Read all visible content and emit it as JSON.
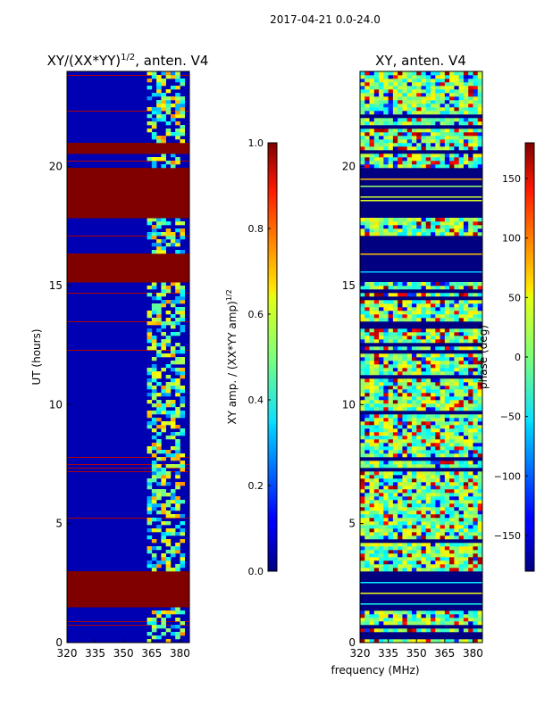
{
  "figure": {
    "suptitle": "2017-04-21 0.0-24.0",
    "shared_xlabel": "frequency (MHz)"
  },
  "chart_data": [
    {
      "type": "heatmap",
      "title_base": "XY/(XX*YY)",
      "title_sup": "1/2",
      "title_rest": ", anten. V4",
      "xlabel": "",
      "ylabel": "UT (hours)",
      "xlim": [
        320,
        385
      ],
      "ylim": [
        0,
        24
      ],
      "xticks": [
        320,
        335,
        350,
        365,
        380
      ],
      "yticks": [
        0,
        5,
        10,
        15,
        20
      ],
      "colorbar": {
        "label_base": "XY amp. / (XX*YY amp)",
        "label_sup": "1/2",
        "range": [
          0.0,
          1.0
        ],
        "ticks": [
          "0.0",
          "0.2",
          "0.4",
          "0.6",
          "0.8",
          "1.0"
        ],
        "tick_values": [
          0.0,
          0.2,
          0.4,
          0.6,
          0.8,
          1.0
        ]
      },
      "saturated_blocks_hours": [
        [
          1.5,
          2.95
        ],
        [
          15.1,
          16.3
        ],
        [
          17.8,
          19.9
        ],
        [
          20.5,
          20.95
        ]
      ],
      "noisy_band_MHz": [
        362,
        383
      ],
      "background_value": 0.05,
      "saturated_value": 1.0
    },
    {
      "type": "heatmap",
      "title": "XY, anten. V4",
      "xlabel": "",
      "ylabel": "",
      "xlim": [
        320,
        385
      ],
      "ylim": [
        0,
        24
      ],
      "xticks": [
        320,
        335,
        350,
        365,
        380
      ],
      "yticks": [
        0,
        5,
        10,
        15,
        20
      ],
      "colorbar": {
        "label": "phase (deg)",
        "range": [
          -180,
          180
        ],
        "ticks": [
          "150",
          "100",
          "50",
          "0",
          "−50",
          "−100",
          "−150"
        ],
        "tick_values": [
          150,
          100,
          50,
          0,
          -50,
          -100,
          -150
        ]
      },
      "blank_blocks_hours": [
        [
          1.5,
          2.95
        ],
        [
          15.1,
          17.0
        ],
        [
          17.8,
          19.9
        ]
      ],
      "background_value_deg": -180,
      "noisy_value_range_deg": [
        -50,
        50
      ]
    }
  ]
}
